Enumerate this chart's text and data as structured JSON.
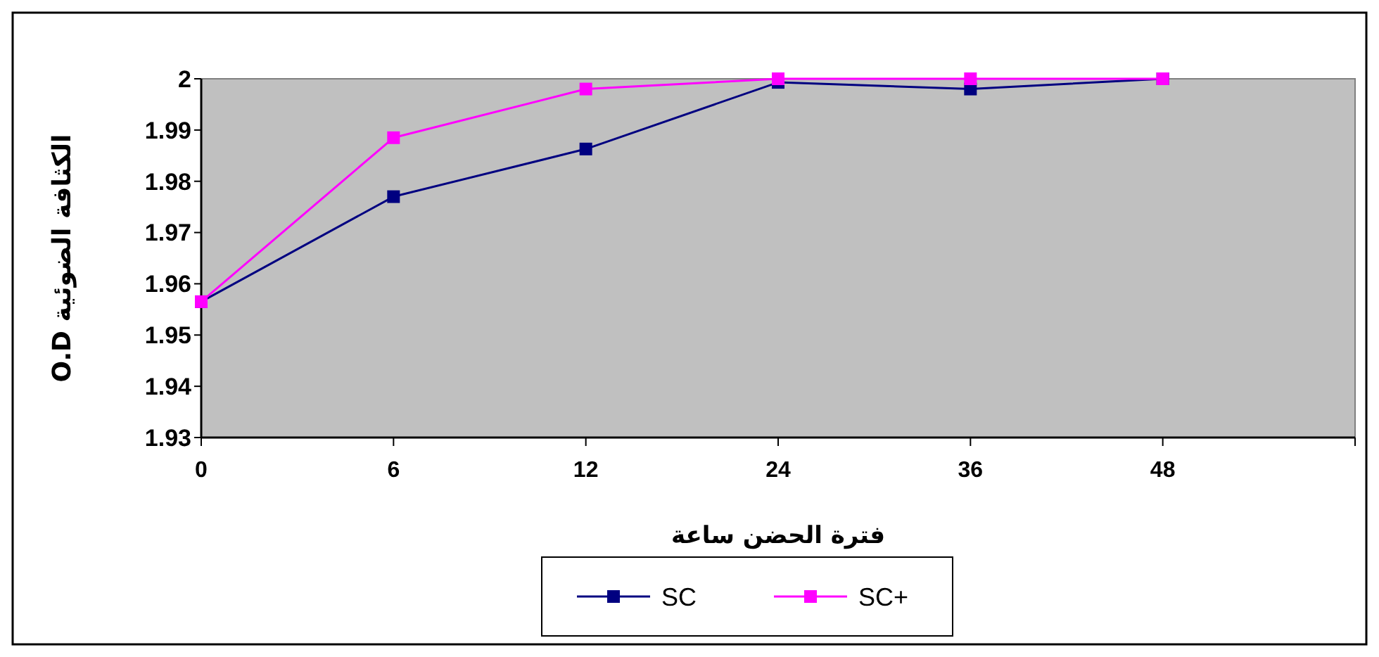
{
  "chart_data": {
    "type": "line",
    "xlabel": "فترة الحضن ساعة",
    "ylabel": "O.D الكثافة الضوئية",
    "categories": [
      "0",
      "6",
      "12",
      "24",
      "36",
      "48",
      null
    ],
    "series": [
      {
        "name": "SC",
        "color": "#000080",
        "values": [
          1.9565,
          1.977,
          1.9863,
          1.9993,
          1.998,
          2.0,
          null
        ]
      },
      {
        "name": "SC+",
        "color": "#ff00ff",
        "values": [
          1.9565,
          1.9885,
          1.998,
          2.0,
          2.0,
          2.0,
          null
        ]
      }
    ],
    "ylim": [
      1.93,
      2
    ],
    "yticks": [
      1.93,
      1.94,
      1.95,
      1.96,
      1.97,
      1.98,
      1.99,
      2
    ],
    "grid": false,
    "legend": "bottom",
    "marker": "square",
    "line_style": "solid"
  }
}
